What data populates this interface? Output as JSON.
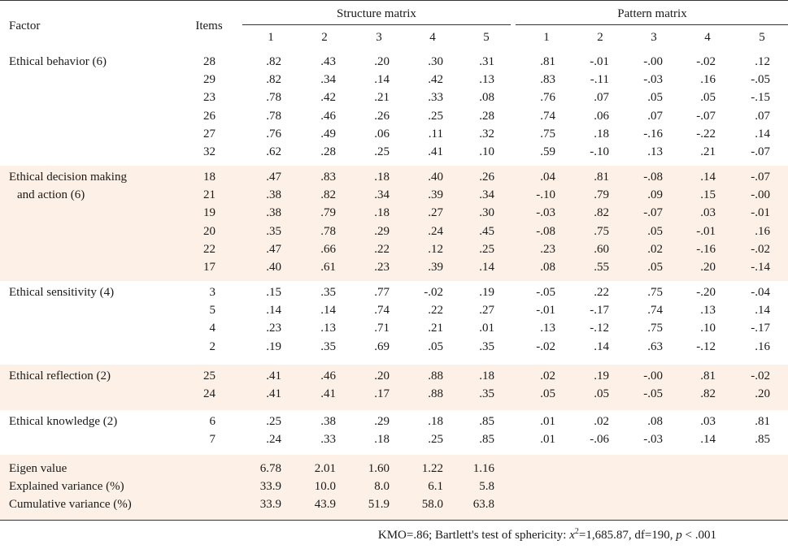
{
  "header": {
    "factor": "Factor",
    "items": "Items",
    "structure_matrix": "Structure matrix",
    "pattern_matrix": "Pattern matrix",
    "columns": [
      "1",
      "2",
      "3",
      "4",
      "5"
    ]
  },
  "groups": [
    {
      "label_lines": [
        "Ethical behavior (6)"
      ],
      "shaded": false,
      "rows": [
        {
          "item": "28",
          "structure": [
            ".82",
            ".43",
            ".20",
            ".30",
            ".31"
          ],
          "pattern": [
            ".81",
            "-.01",
            "-.00",
            "-.02",
            ".12"
          ]
        },
        {
          "item": "29",
          "structure": [
            ".82",
            ".34",
            ".14",
            ".42",
            ".13"
          ],
          "pattern": [
            ".83",
            "-.11",
            "-.03",
            ".16",
            "-.05"
          ]
        },
        {
          "item": "23",
          "structure": [
            ".78",
            ".42",
            ".21",
            ".33",
            ".08"
          ],
          "pattern": [
            ".76",
            ".07",
            ".05",
            ".05",
            "-.15"
          ]
        },
        {
          "item": "26",
          "structure": [
            ".78",
            ".46",
            ".26",
            ".25",
            ".28"
          ],
          "pattern": [
            ".74",
            ".06",
            ".07",
            "-.07",
            ".07"
          ]
        },
        {
          "item": "27",
          "structure": [
            ".76",
            ".49",
            ".06",
            ".11",
            ".32"
          ],
          "pattern": [
            ".75",
            ".18",
            "-.16",
            "-.22",
            ".14"
          ]
        },
        {
          "item": "32",
          "structure": [
            ".62",
            ".28",
            ".25",
            ".41",
            ".10"
          ],
          "pattern": [
            ".59",
            "-.10",
            ".13",
            ".21",
            "-.07"
          ]
        }
      ]
    },
    {
      "label_lines": [
        "Ethical decision making",
        "and action (6)"
      ],
      "shaded": true,
      "rows": [
        {
          "item": "18",
          "structure": [
            ".47",
            ".83",
            ".18",
            ".40",
            ".26"
          ],
          "pattern": [
            ".04",
            ".81",
            "-.08",
            ".14",
            "-.07"
          ]
        },
        {
          "item": "21",
          "structure": [
            ".38",
            ".82",
            ".34",
            ".39",
            ".34"
          ],
          "pattern": [
            "-.10",
            ".79",
            ".09",
            ".15",
            "-.00"
          ]
        },
        {
          "item": "19",
          "structure": [
            ".38",
            ".79",
            ".18",
            ".27",
            ".30"
          ],
          "pattern": [
            "-.03",
            ".82",
            "-.07",
            ".03",
            "-.01"
          ]
        },
        {
          "item": "20",
          "structure": [
            ".35",
            ".78",
            ".29",
            ".24",
            ".45"
          ],
          "pattern": [
            "-.08",
            ".75",
            ".05",
            "-.01",
            ".16"
          ]
        },
        {
          "item": "22",
          "structure": [
            ".47",
            ".66",
            ".22",
            ".12",
            ".25"
          ],
          "pattern": [
            ".23",
            ".60",
            ".02",
            "-.16",
            "-.02"
          ]
        },
        {
          "item": "17",
          "structure": [
            ".40",
            ".61",
            ".23",
            ".39",
            ".14"
          ],
          "pattern": [
            ".08",
            ".55",
            ".05",
            ".20",
            "-.14"
          ]
        }
      ]
    },
    {
      "label_lines": [
        "Ethical sensitivity (4)"
      ],
      "shaded": false,
      "rows": [
        {
          "item": "3",
          "structure": [
            ".15",
            ".35",
            ".77",
            "-.02",
            ".19"
          ],
          "pattern": [
            "-.05",
            ".22",
            ".75",
            "-.20",
            "-.04"
          ]
        },
        {
          "item": "5",
          "structure": [
            ".14",
            ".14",
            ".74",
            ".22",
            ".27"
          ],
          "pattern": [
            "-.01",
            "-.17",
            ".74",
            ".13",
            ".14"
          ]
        },
        {
          "item": "4",
          "structure": [
            ".23",
            ".13",
            ".71",
            ".21",
            ".01"
          ],
          "pattern": [
            ".13",
            "-.12",
            ".75",
            ".10",
            "-.17"
          ]
        },
        {
          "item": "2",
          "structure": [
            ".19",
            ".35",
            ".69",
            ".05",
            ".35"
          ],
          "pattern": [
            "-.02",
            ".14",
            ".63",
            "-.12",
            ".16"
          ]
        }
      ]
    },
    {
      "label_lines": [
        "Ethical reflection (2)"
      ],
      "shaded": true,
      "rows": [
        {
          "item": "25",
          "structure": [
            ".41",
            ".46",
            ".20",
            ".88",
            ".18"
          ],
          "pattern": [
            ".02",
            ".19",
            "-.00",
            ".81",
            "-.02"
          ]
        },
        {
          "item": "24",
          "structure": [
            ".41",
            ".41",
            ".17",
            ".88",
            ".35"
          ],
          "pattern": [
            ".05",
            ".05",
            "-.05",
            ".82",
            ".20"
          ]
        }
      ]
    },
    {
      "label_lines": [
        "Ethical knowledge (2)"
      ],
      "shaded": false,
      "rows": [
        {
          "item": "6",
          "structure": [
            ".25",
            ".38",
            ".29",
            ".18",
            ".85"
          ],
          "pattern": [
            ".01",
            ".02",
            ".08",
            ".03",
            ".81"
          ]
        },
        {
          "item": "7",
          "structure": [
            ".24",
            ".33",
            ".18",
            ".25",
            ".85"
          ],
          "pattern": [
            ".01",
            "-.06",
            "-.03",
            ".14",
            ".85"
          ]
        }
      ]
    }
  ],
  "summary": [
    {
      "label": "Eigen value",
      "values": [
        "6.78",
        "2.01",
        "1.60",
        "1.22",
        "1.16"
      ]
    },
    {
      "label": "Explained variance (%)",
      "values": [
        "33.9",
        "10.0",
        "8.0",
        "6.1",
        "5.8"
      ]
    },
    {
      "label": "Cumulative variance (%)",
      "values": [
        "33.9",
        "43.9",
        "51.9",
        "58.0",
        "63.8"
      ]
    }
  ],
  "footnote": {
    "prefix": "KMO=.86; Bartlett's test of sphericity: ",
    "chi_symbol": "x",
    "chi_exp": "2",
    "mid": "=1,685.87, df=190, ",
    "p_symbol": "p",
    "suffix": " < .001"
  },
  "colors": {
    "shade": "#fdf0e6",
    "rule": "#333333",
    "text": "#1a1a1a"
  }
}
